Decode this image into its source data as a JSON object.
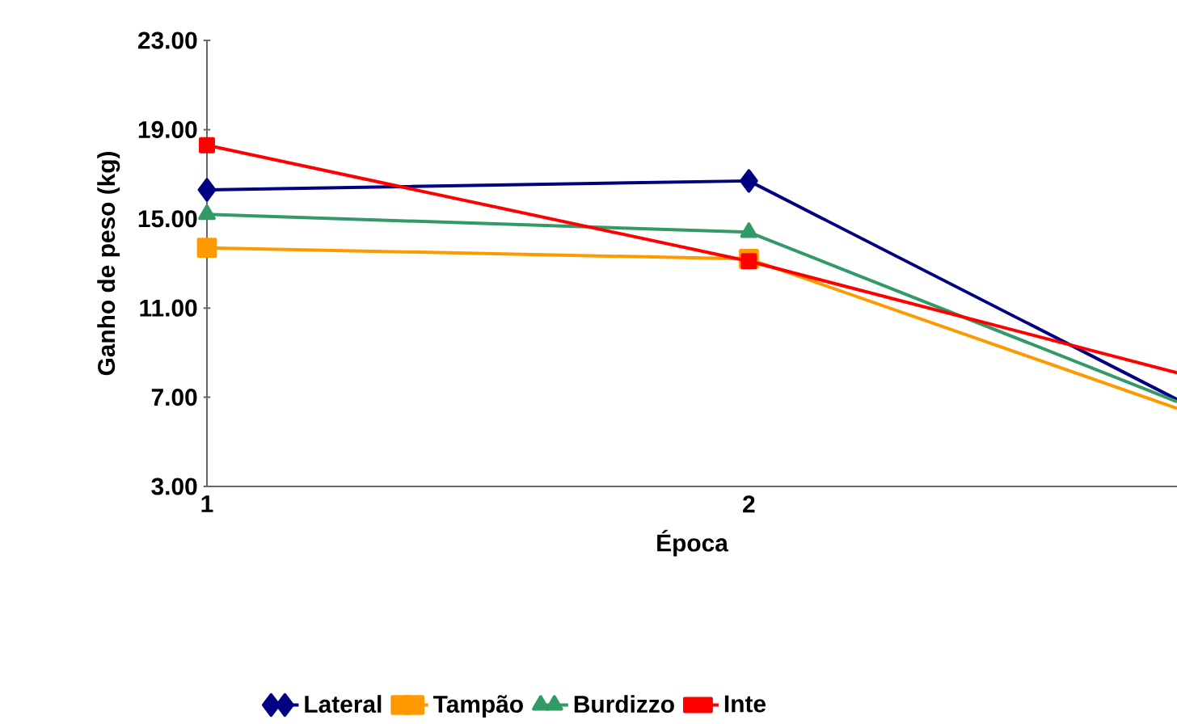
{
  "chart_data": {
    "type": "line",
    "xlabel": "Época",
    "ylabel": "Ganho de peso (kg)",
    "xlim": [
      1,
      2.79
    ],
    "xticks": [
      1,
      2
    ],
    "ylim": [
      3,
      23
    ],
    "yticks": [
      {
        "value": 3,
        "label": "3.00"
      },
      {
        "value": 7,
        "label": "7.00"
      },
      {
        "value": 11,
        "label": "11.00"
      },
      {
        "value": 15,
        "label": "15.00"
      },
      {
        "value": 19,
        "label": "19.00"
      },
      {
        "value": 23,
        "label": "23.00"
      }
    ],
    "x": [
      1,
      2,
      2.79
    ],
    "series": [
      {
        "name": "Lateral",
        "color": "#000080",
        "marker": "diamond",
        "values": [
          16.3,
          16.7,
          6.9
        ]
      },
      {
        "name": "Tampão",
        "color": "#ff9900",
        "marker": "square",
        "values": [
          13.7,
          13.2,
          6.5
        ]
      },
      {
        "name": "Burdizzo",
        "color": "#339966",
        "marker": "triangle",
        "values": [
          15.2,
          14.4,
          6.8
        ]
      },
      {
        "name": "Inte",
        "color": "#ff0000",
        "marker": "square",
        "values": [
          18.3,
          13.1,
          8.1
        ]
      }
    ],
    "legend": "bottom",
    "grid": false
  }
}
